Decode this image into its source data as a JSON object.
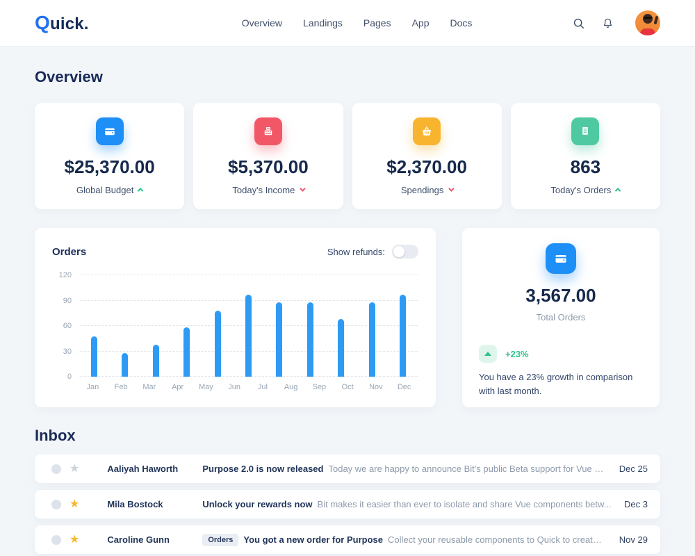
{
  "navbar": {
    "logo_mark": "Q",
    "logo_rest": "uick.",
    "items": [
      {
        "label": "Overview"
      },
      {
        "label": "Landings"
      },
      {
        "label": "Pages"
      },
      {
        "label": "App"
      },
      {
        "label": "Docs"
      }
    ]
  },
  "page": {
    "overview_title": "Overview",
    "inbox_title": "Inbox"
  },
  "stats": [
    {
      "icon": "wallet-icon",
      "color": "#1e8ff7",
      "value": "$25,370.00",
      "label": "Global Budget",
      "trend": "up"
    },
    {
      "icon": "cash-register-icon",
      "color": "#f25767",
      "value": "$5,370.00",
      "label": "Today's Income",
      "trend": "down"
    },
    {
      "icon": "basket-icon",
      "color": "#f8b42f",
      "value": "$2,370.00",
      "label": "Spendings",
      "trend": "down"
    },
    {
      "icon": "receipt-icon",
      "color": "#4fc9a2",
      "value": "863",
      "label": "Today's Orders",
      "trend": "up"
    }
  ],
  "orders_card": {
    "title": "Orders",
    "toggle_label": "Show refunds:",
    "toggle_on": false
  },
  "chart_data": {
    "type": "bar",
    "title": "Orders",
    "categories": [
      "Jan",
      "Feb",
      "Mar",
      "Apr",
      "May",
      "Jun",
      "Jul",
      "Aug",
      "Sep",
      "Oct",
      "Nov",
      "Dec"
    ],
    "values": [
      48,
      28,
      38,
      58,
      78,
      97,
      88,
      88,
      68,
      88,
      97
    ],
    "xlabel": "",
    "ylabel": "",
    "yticks": [
      0,
      30,
      60,
      90,
      120
    ],
    "ylim": [
      0,
      120
    ],
    "bar_color": "#2d9bf5",
    "grid": "horizontal-dotted",
    "legend": "none",
    "note": "11 bars drawn across 12 month labels, bars drift right of labels"
  },
  "total_orders_card": {
    "value": "3,567.00",
    "label": "Total Orders",
    "delta": "+23%",
    "description": "You have a 23% growth in comparison with last month."
  },
  "inbox": {
    "rows": [
      {
        "sender": "Aaliyah Haworth",
        "badge": "",
        "subject": "Purpose 2.0 is now released",
        "preview": "Today we are happy to announce Bit's public Beta support for Vue co...",
        "date": "Dec 25",
        "starred": false
      },
      {
        "sender": "Mila Bostock",
        "badge": "",
        "subject": "Unlock your rewards now",
        "preview": "Bit makes it easier than ever to isolate and share Vue components betw...",
        "date": "Dec 3",
        "starred": true
      },
      {
        "sender": "Caroline Gunn",
        "badge": "Orders",
        "subject": "You got a new order for Purpose",
        "preview": "Collect your reusable components to Quick to create your very o...",
        "date": "Nov 29",
        "starred": true
      }
    ]
  }
}
